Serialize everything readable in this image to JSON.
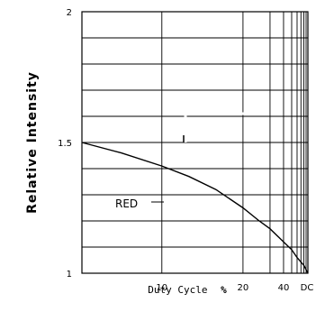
{
  "chart_data": {
    "type": "line",
    "title": "",
    "xlabel": "Duty Cycle",
    "xlabel_unit": "%",
    "ylabel": "Relative Intensity",
    "x_scale": "reciprocal",
    "xlim": [
      6.7,
      100
    ],
    "ylim": [
      1,
      2
    ],
    "y_ticks": [
      {
        "value": 1,
        "label": "1"
      },
      {
        "value": 1.5,
        "label": "1.5"
      },
      {
        "value": 2,
        "label": "2"
      }
    ],
    "x_ticks": [
      {
        "value": 10,
        "label": "10"
      },
      {
        "value": 20,
        "label": "20"
      },
      {
        "value": 40,
        "label": "40"
      },
      {
        "value": 100,
        "label": "DC"
      }
    ],
    "grid": true,
    "series": [
      {
        "name": "RED",
        "x": [
          6.7,
          8,
          10,
          12,
          15,
          20,
          25,
          30,
          40,
          50,
          60,
          80,
          100
        ],
        "y": [
          1.5,
          1.46,
          1.41,
          1.37,
          1.32,
          1.25,
          1.2,
          1.17,
          1.12,
          1.09,
          1.06,
          1.03,
          1.0
        ]
      }
    ]
  }
}
